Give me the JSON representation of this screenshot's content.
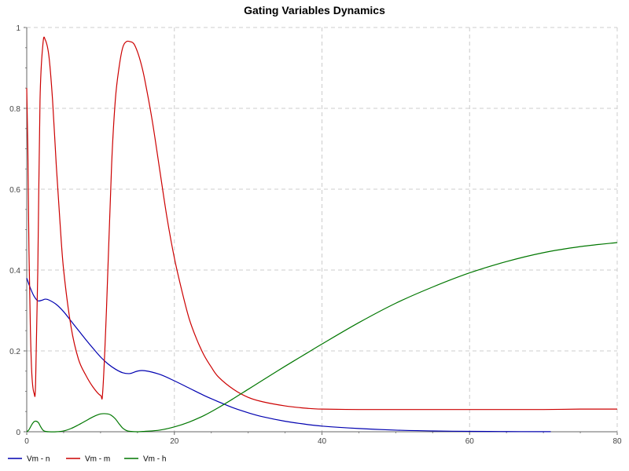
{
  "chart_data": {
    "type": "line",
    "title": "Gating Variables Dynamics",
    "xlabel": "",
    "ylabel": "",
    "xlim": [
      0,
      80
    ],
    "ylim": [
      0,
      1
    ],
    "xticks": [
      "0",
      "20",
      "40",
      "60",
      "80"
    ],
    "yticks": [
      "0",
      "0.2",
      "0.4",
      "0.6",
      "0.8",
      "1"
    ],
    "grid": true,
    "legend_position": "bottom-left",
    "series": [
      {
        "name": "Vm - n",
        "color": "#0000b0",
        "x": [
          0,
          0.5,
          1,
          1.5,
          2,
          2.5,
          3,
          4,
          5,
          6,
          7,
          8,
          9,
          10,
          11,
          12,
          13,
          14,
          15,
          16,
          18,
          20,
          22,
          24,
          26,
          28,
          30,
          32,
          35,
          38,
          40,
          45,
          50,
          55,
          60,
          65,
          70,
          71
        ],
        "y": [
          0.38,
          0.355,
          0.335,
          0.324,
          0.325,
          0.328,
          0.326,
          0.315,
          0.297,
          0.274,
          0.251,
          0.228,
          0.206,
          0.185,
          0.168,
          0.155,
          0.146,
          0.144,
          0.15,
          0.151,
          0.142,
          0.126,
          0.108,
          0.09,
          0.074,
          0.059,
          0.047,
          0.037,
          0.026,
          0.018,
          0.014,
          0.008,
          0.004,
          0.002,
          0.001,
          0.0005,
          0.0003,
          0.0002
        ]
      },
      {
        "name": "Vm - m",
        "color": "#cc0000",
        "x": [
          0,
          0.15,
          0.3,
          0.5,
          0.7,
          1,
          1.2,
          1.5,
          1.8,
          2.2,
          2.5,
          3,
          3.5,
          4,
          4.5,
          5,
          6,
          7,
          8,
          9,
          10,
          10.3,
          10.8,
          11.5,
          12,
          12.5,
          13,
          13.5,
          14,
          14.5,
          15,
          15.5,
          16,
          17,
          18,
          19,
          20,
          21,
          22,
          23,
          24,
          25,
          26,
          28,
          30,
          32,
          35,
          38,
          40,
          45,
          50,
          55,
          60,
          65,
          70,
          75,
          80
        ],
        "y": [
          0.85,
          0.7,
          0.45,
          0.25,
          0.14,
          0.095,
          0.12,
          0.4,
          0.82,
          0.96,
          0.97,
          0.93,
          0.82,
          0.66,
          0.52,
          0.4,
          0.26,
          0.18,
          0.14,
          0.11,
          0.09,
          0.1,
          0.3,
          0.66,
          0.82,
          0.9,
          0.95,
          0.965,
          0.965,
          0.96,
          0.94,
          0.91,
          0.87,
          0.77,
          0.65,
          0.53,
          0.43,
          0.35,
          0.28,
          0.23,
          0.19,
          0.16,
          0.135,
          0.105,
          0.085,
          0.074,
          0.064,
          0.058,
          0.056,
          0.055,
          0.055,
          0.055,
          0.055,
          0.055,
          0.055,
          0.056,
          0.056
        ]
      },
      {
        "name": "Vm - h",
        "color": "#007700",
        "x": [
          0,
          0.3,
          0.7,
          1,
          1.3,
          1.6,
          1.9,
          2.2,
          2.5,
          3,
          4,
          5,
          6,
          7,
          8,
          9,
          10,
          11,
          11.5,
          12,
          12.5,
          13,
          13.5,
          14,
          15,
          16,
          18,
          20,
          22,
          24,
          26,
          28,
          30,
          32,
          35,
          38,
          40,
          45,
          50,
          55,
          60,
          65,
          70,
          75,
          80
        ],
        "y": [
          0.0,
          0.005,
          0.018,
          0.025,
          0.026,
          0.022,
          0.012,
          0.004,
          0.001,
          0.0,
          0.0,
          0.002,
          0.008,
          0.017,
          0.027,
          0.037,
          0.044,
          0.044,
          0.04,
          0.032,
          0.02,
          0.009,
          0.003,
          0.001,
          0.0,
          0.001,
          0.004,
          0.012,
          0.024,
          0.04,
          0.06,
          0.082,
          0.105,
          0.128,
          0.162,
          0.195,
          0.217,
          0.27,
          0.318,
          0.358,
          0.393,
          0.421,
          0.443,
          0.458,
          0.468
        ]
      }
    ]
  }
}
